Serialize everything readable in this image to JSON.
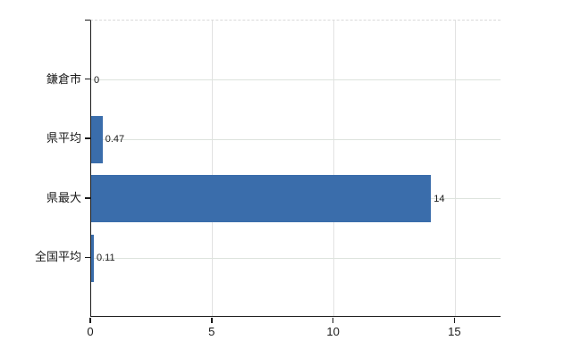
{
  "chart_data": {
    "type": "bar",
    "orientation": "horizontal",
    "title": "",
    "xlabel": "",
    "ylabel": "",
    "categories": [
      "鎌倉市",
      "県平均",
      "県最大",
      "全国平均"
    ],
    "values": [
      0,
      0.47,
      14,
      0.11
    ],
    "value_labels": [
      "0",
      "0.47",
      "14",
      "0.11"
    ],
    "x_ticks": [
      0,
      5,
      10,
      15
    ],
    "x_tick_labels": [
      "0",
      "5",
      "10",
      "15"
    ],
    "xlim": [
      0,
      16.9
    ],
    "grid": true,
    "legend_position": "none",
    "bar_color": "#3a6dab"
  },
  "colors": {
    "background": "#ffffff",
    "bar": "#3a6dab",
    "gridline_horizontal": "#dde3dd",
    "gridline_vertical": "#e2e2e2",
    "top_border": "#d9d9d9",
    "axis": "#1a1a1a",
    "text": "#1a1a1a"
  }
}
